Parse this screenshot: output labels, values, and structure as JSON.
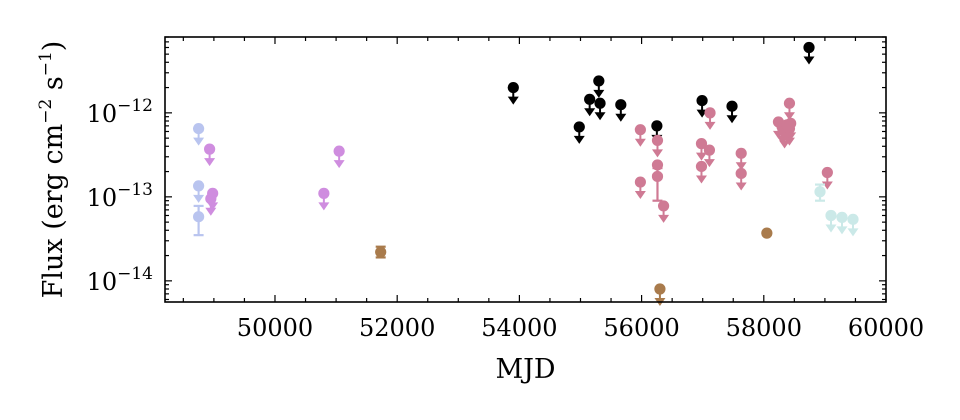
{
  "chart_data": {
    "type": "scatter",
    "title": "",
    "xlabel": "MJD",
    "ylabel": {
      "base": "Flux (erg cm",
      "exp1": "−2",
      "mid": " s",
      "exp2": "−1",
      "end": ")"
    },
    "xlim": [
      48200,
      60000
    ],
    "ylim": [
      5.6e-15,
      8e-12
    ],
    "yscale": "log",
    "xticks": [
      {
        "value": 50000,
        "label": "50000"
      },
      {
        "value": 52000,
        "label": "52000"
      },
      {
        "value": 54000,
        "label": "54000"
      },
      {
        "value": 56000,
        "label": "56000"
      },
      {
        "value": 58000,
        "label": "58000"
      },
      {
        "value": 60000,
        "label": "60000"
      }
    ],
    "yticks": [
      {
        "value": 1e-14,
        "base": "10",
        "exp": "−14"
      },
      {
        "value": 1e-13,
        "base": "10",
        "exp": "−13"
      },
      {
        "value": 1e-12,
        "base": "10",
        "exp": "−12"
      }
    ],
    "grid": false,
    "legend": "none",
    "series": [
      {
        "color": "#b9c4ef",
        "points": [
          {
            "x": 48750,
            "y": 6.5e-13,
            "upper_limit": true
          },
          {
            "x": 48750,
            "y": 1.35e-13,
            "upper_limit": true
          },
          {
            "x": 48750,
            "y": 5.8e-14,
            "err_lo": 3.5e-14,
            "err_hi": 7.8e-14
          }
        ]
      },
      {
        "color": "#cf8ddf",
        "points": [
          {
            "x": 48930,
            "y": 3.7e-13,
            "upper_limit": true
          },
          {
            "x": 48980,
            "y": 1.1e-13,
            "upper_limit": true
          },
          {
            "x": 48950,
            "y": 9.5e-14,
            "upper_limit": true
          },
          {
            "x": 50800,
            "y": 1.1e-13,
            "upper_limit": true
          },
          {
            "x": 51050,
            "y": 3.5e-13,
            "upper_limit": true
          }
        ]
      },
      {
        "color": "#a97b4c",
        "points": [
          {
            "x": 51730,
            "y": 2.2e-14,
            "err_lo": 1.9e-14,
            "err_hi": 2.55e-14
          },
          {
            "x": 56300,
            "y": 8e-15,
            "upper_limit": true
          },
          {
            "x": 58050,
            "y": 3.7e-14
          }
        ]
      },
      {
        "color": "#000000",
        "points": [
          {
            "x": 53900,
            "y": 2e-12,
            "upper_limit": true
          },
          {
            "x": 54980,
            "y": 6.8e-13,
            "upper_limit": true
          },
          {
            "x": 55150,
            "y": 1.45e-12,
            "upper_limit": true
          },
          {
            "x": 55300,
            "y": 2.4e-12,
            "upper_limit": true
          },
          {
            "x": 55320,
            "y": 1.3e-12,
            "upper_limit": true
          },
          {
            "x": 55660,
            "y": 1.25e-12,
            "upper_limit": true
          },
          {
            "x": 56250,
            "y": 7e-13,
            "upper_limit": true
          },
          {
            "x": 56990,
            "y": 1.4e-12,
            "upper_limit": true
          },
          {
            "x": 57480,
            "y": 1.2e-12,
            "upper_limit": true
          },
          {
            "x": 58740,
            "y": 6e-12,
            "upper_limit": true
          }
        ]
      },
      {
        "color": "#cf7a94",
        "points": [
          {
            "x": 55980,
            "y": 6.3e-13,
            "upper_limit": true
          },
          {
            "x": 55980,
            "y": 1.5e-13,
            "upper_limit": true
          },
          {
            "x": 56260,
            "y": 4.7e-13,
            "upper_limit": true
          },
          {
            "x": 56260,
            "y": 2.4e-13,
            "upper_limit": true
          },
          {
            "x": 56260,
            "y": 1.75e-13,
            "err_lo": 9e-14,
            "err_hi": 2.2e-13
          },
          {
            "x": 56360,
            "y": 7.8e-14,
            "upper_limit": true
          },
          {
            "x": 56980,
            "y": 4.3e-13,
            "upper_limit": true
          },
          {
            "x": 56980,
            "y": 2.3e-13,
            "upper_limit": true
          },
          {
            "x": 57120,
            "y": 1e-12,
            "upper_limit": true
          },
          {
            "x": 57110,
            "y": 3.6e-13,
            "upper_limit": true
          },
          {
            "x": 57630,
            "y": 3.3e-13,
            "upper_limit": true
          },
          {
            "x": 57630,
            "y": 1.9e-13,
            "upper_limit": true
          },
          {
            "x": 58240,
            "y": 7.8e-13,
            "upper_limit": true
          },
          {
            "x": 58300,
            "y": 6.8e-13,
            "upper_limit": true
          },
          {
            "x": 58340,
            "y": 6e-13,
            "upper_limit": true
          },
          {
            "x": 58380,
            "y": 7.2e-13,
            "upper_limit": true
          },
          {
            "x": 58420,
            "y": 6.5e-13,
            "upper_limit": true
          },
          {
            "x": 58420,
            "y": 1.3e-12,
            "upper_limit": true
          },
          {
            "x": 58440,
            "y": 7.5e-13,
            "upper_limit": true
          },
          {
            "x": 59040,
            "y": 1.95e-13,
            "upper_limit": true
          }
        ]
      },
      {
        "color": "#cbe9e8",
        "points": [
          {
            "x": 58920,
            "y": 1.15e-13,
            "err_lo": 9e-14,
            "err_hi": 1.4e-13
          },
          {
            "x": 59100,
            "y": 6e-14,
            "upper_limit": true
          },
          {
            "x": 59280,
            "y": 5.7e-14,
            "upper_limit": true
          },
          {
            "x": 59460,
            "y": 5.4e-14,
            "upper_limit": true
          }
        ]
      }
    ]
  }
}
